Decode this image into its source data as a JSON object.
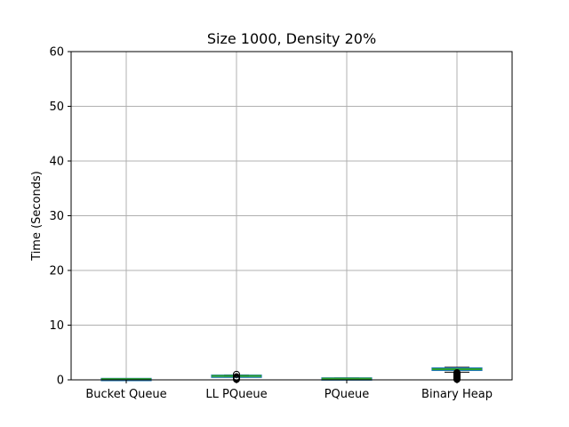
{
  "chart_data": {
    "type": "box",
    "title": "Size 1000, Density 20%",
    "xlabel": "",
    "ylabel": "Time (Seconds)",
    "ylim": [
      0,
      60
    ],
    "yticks": [
      "0",
      "10",
      "20",
      "30",
      "40",
      "50",
      "60"
    ],
    "grid": true,
    "categories": [
      "Bucket Queue",
      "LL PQueue",
      "PQueue",
      "Binary Heap"
    ],
    "boxes": [
      {
        "category": "Bucket Queue",
        "whisker_low": 0.05,
        "q1": 0.12,
        "median": 0.15,
        "q3": 0.18,
        "whisker_high": 0.25,
        "outliers": []
      },
      {
        "category": "LL PQueue",
        "whisker_low": 0.6,
        "q1": 0.68,
        "median": 0.72,
        "q3": 0.78,
        "whisker_high": 0.9,
        "outliers": [
          0.1,
          0.2,
          0.3,
          0.4,
          0.5,
          0.55,
          1.0
        ]
      },
      {
        "category": "PQueue",
        "whisker_low": 0.1,
        "q1": 0.18,
        "median": 0.22,
        "q3": 0.28,
        "whisker_high": 0.35,
        "outliers": []
      },
      {
        "category": "Binary Heap",
        "whisker_low": 1.4,
        "q1": 1.8,
        "median": 1.95,
        "q3": 2.1,
        "whisker_high": 2.3,
        "outliers": [
          0.1,
          0.2,
          0.3,
          0.4,
          0.5,
          0.6,
          0.7,
          0.8,
          0.9,
          1.0,
          1.1,
          1.2,
          1.3
        ]
      }
    ],
    "colors": {
      "box": "#1f77b4",
      "median": "#2ca02c",
      "whisker": "#1f77b4",
      "outlier": "#000000"
    }
  }
}
